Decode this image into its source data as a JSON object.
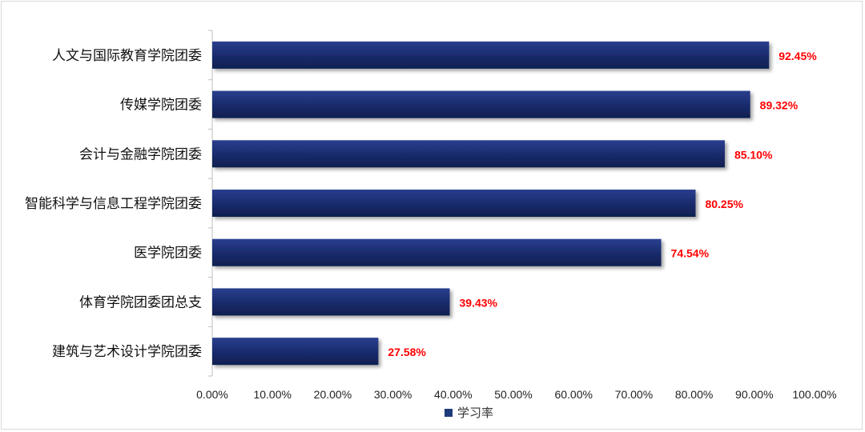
{
  "chart_data": {
    "type": "bar",
    "orientation": "horizontal",
    "categories": [
      "人文与国际教育学院团委",
      "传媒学院团委",
      "会计与金融学院团委",
      "智能科学与信息工程学院团委",
      "医学院团委",
      "体育学院团委团总支",
      "建筑与艺术设计学院团委"
    ],
    "series": [
      {
        "name": "学习率",
        "values": [
          92.45,
          89.32,
          85.1,
          80.25,
          74.54,
          39.43,
          27.58
        ],
        "labels": [
          "92.45%",
          "89.32%",
          "85.10%",
          "80.25%",
          "74.54%",
          "39.43%",
          "27.58%"
        ]
      }
    ],
    "xlim": [
      0,
      100
    ],
    "x_ticks": [
      "0.00%",
      "10.00%",
      "20.00%",
      "30.00%",
      "40.00%",
      "50.00%",
      "60.00%",
      "70.00%",
      "80.00%",
      "90.00%",
      "100.00%"
    ],
    "grid": false,
    "legend": "bottom",
    "colors": {
      "bar_dark": "#0f1f4f",
      "bar_light": "#2a3f8f",
      "label": "#ff0000",
      "legend_marker": "#1f3a7a",
      "axis": "#bfbfbf"
    }
  }
}
